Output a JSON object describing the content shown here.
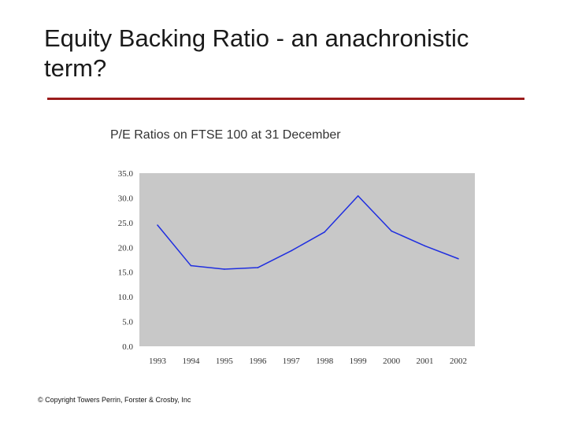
{
  "slide": {
    "title": "Equity Backing Ratio - an anachronistic term?",
    "copyright": "© Copyright Towers Perrin, Forster & Crosby, Inc"
  },
  "colors": {
    "title_rule": "#9b1c1c",
    "plot_background": "#c8c8c8",
    "series_line": "#1f2ee0"
  },
  "chart_data": {
    "type": "line",
    "title": "P/E Ratios on FTSE 100 at 31 December",
    "xlabel": "",
    "ylabel": "",
    "categories": [
      "1993",
      "1994",
      "1995",
      "1996",
      "1997",
      "1998",
      "1999",
      "2000",
      "2001",
      "2002"
    ],
    "series": [
      {
        "values": [
          24.5,
          16.3,
          15.6,
          15.9,
          19.3,
          23.1,
          30.4,
          23.3,
          20.3,
          17.7
        ]
      }
    ],
    "ylim": [
      0,
      35
    ],
    "y_ticks": [
      "0.0",
      "5.0",
      "10.0",
      "15.0",
      "20.0",
      "25.0",
      "30.0",
      "35.0"
    ],
    "grid": false,
    "legend": "none"
  }
}
